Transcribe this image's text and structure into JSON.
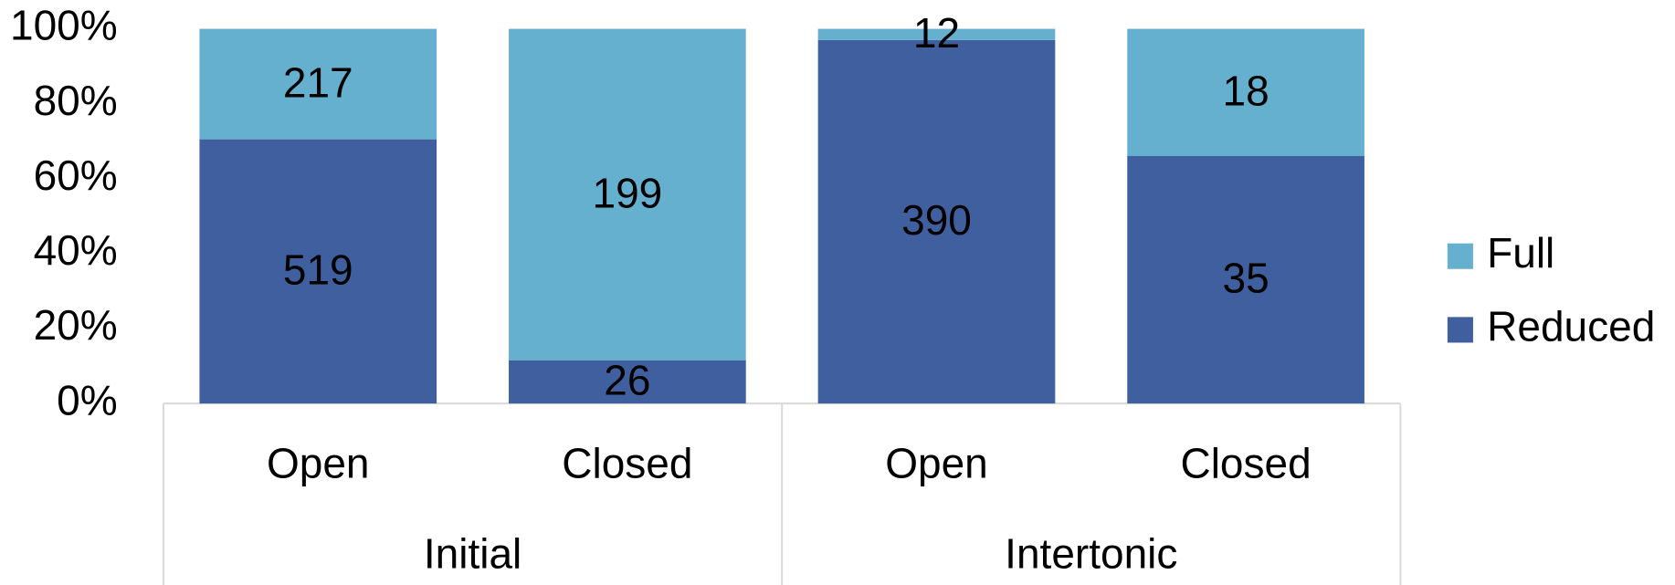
{
  "chart_data": {
    "type": "bar",
    "stacked": "percent",
    "groups": [
      {
        "name": "Initial",
        "categories": [
          "Open",
          "Closed"
        ]
      },
      {
        "name": "Intertonic",
        "categories": [
          "Open",
          "Closed"
        ]
      }
    ],
    "series": [
      {
        "name": "Reduced",
        "color": "#3f5f9e",
        "values": [
          519,
          26,
          390,
          35
        ]
      },
      {
        "name": "Full",
        "color": "#66b0cf",
        "values": [
          217,
          199,
          12,
          18
        ]
      }
    ],
    "ylim": [
      0,
      100
    ],
    "yticks": [
      {
        "value": 0,
        "label": "0%"
      },
      {
        "value": 20,
        "label": "20%"
      },
      {
        "value": 40,
        "label": "40%"
      },
      {
        "value": 60,
        "label": "60%"
      },
      {
        "value": 80,
        "label": "80%"
      },
      {
        "value": 100,
        "label": "100%"
      }
    ],
    "legend": "right"
  }
}
